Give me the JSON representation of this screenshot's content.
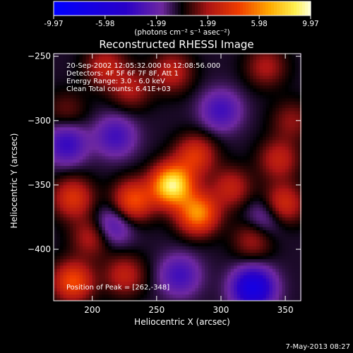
{
  "chart_data": {
    "type": "heatmap",
    "title": "Reconstructed RHESSI Image",
    "xlabel": "Heliocentric X (arcsec)",
    "ylabel": "Heliocentric Y (arcsec)",
    "xlim": [
      170,
      362
    ],
    "ylim": [
      -440,
      -248
    ],
    "x_ticks": [
      200,
      250,
      300,
      350
    ],
    "y_ticks": [
      -400,
      -350,
      -300,
      -250
    ],
    "colorbar": {
      "min": -9.97,
      "max": 9.97,
      "ticks": [
        -9.97,
        -5.98,
        -1.99,
        1.99,
        5.98,
        9.97
      ],
      "tick_labels": [
        "-9.97",
        "-5.98",
        "-1.99",
        "1.99",
        "5.98",
        "9.97"
      ],
      "unit_label": "(photons cm⁻² s⁻¹ asec⁻²)"
    },
    "annotations": [
      "20-Sep-2002 12:05:32.000 to 12:08:56.000",
      "Detectors: 4F 5F 6F 7F 8F, Att 1",
      "Energy Range: 3.0 - 6.0 keV",
      "Clean     Total counts: 6.41E+03"
    ],
    "peak_label": "Position of Peak = [262,-348]",
    "peak": [
      262,
      -348
    ],
    "sources": [
      {
        "x": 262,
        "y": -350,
        "value": 9.5
      },
      {
        "x": 282,
        "y": -372,
        "value": 6.5
      },
      {
        "x": 232,
        "y": -362,
        "value": 5.0
      },
      {
        "x": 280,
        "y": -327,
        "value": 4.0
      },
      {
        "x": 308,
        "y": -352,
        "value": 3.0
      },
      {
        "x": 185,
        "y": -360,
        "value": 4.0
      },
      {
        "x": 185,
        "y": -425,
        "value": 5.0
      },
      {
        "x": 225,
        "y": -420,
        "value": 3.0
      },
      {
        "x": 200,
        "y": -390,
        "value": 3.0
      },
      {
        "x": 348,
        "y": -365,
        "value": 4.0
      },
      {
        "x": 345,
        "y": -330,
        "value": 3.0
      },
      {
        "x": 325,
        "y": -392,
        "value": 2.5
      },
      {
        "x": 210,
        "y": -258,
        "value": 3.0
      },
      {
        "x": 230,
        "y": -275,
        "value": 2.5
      },
      {
        "x": 262,
        "y": -262,
        "value": 3.0
      },
      {
        "x": 335,
        "y": -258,
        "value": 2.5
      },
      {
        "x": 355,
        "y": -300,
        "value": 2.0
      },
      {
        "x": 180,
        "y": -292,
        "value": 1.5
      },
      {
        "x": 180,
        "y": -318,
        "value": -3.5
      },
      {
        "x": 218,
        "y": -312,
        "value": -3.0
      },
      {
        "x": 300,
        "y": -292,
        "value": -3.0
      },
      {
        "x": 325,
        "y": -430,
        "value": -6.5
      },
      {
        "x": 268,
        "y": -420,
        "value": -3.0
      },
      {
        "x": 215,
        "y": -382,
        "value": -3.0
      },
      {
        "x": 335,
        "y": -375,
        "value": -2.5
      }
    ]
  },
  "footer_date": "7-May-2013 08:27"
}
